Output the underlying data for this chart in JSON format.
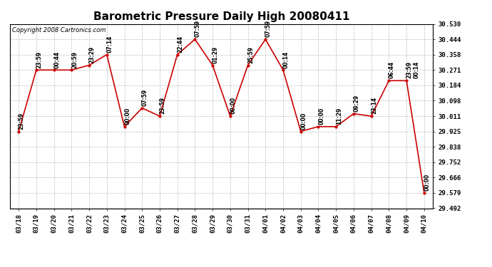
{
  "title": "Barometric Pressure Daily High 20080411",
  "copyright": "Copyright 2008 Cartronics.com",
  "x_labels": [
    "03/18",
    "03/19",
    "03/20",
    "03/21",
    "03/22",
    "03/23",
    "03/24",
    "03/25",
    "03/26",
    "03/27",
    "03/28",
    "03/29",
    "03/30",
    "03/31",
    "04/01",
    "04/02",
    "04/03",
    "04/04",
    "04/05",
    "04/06",
    "04/07",
    "04/08",
    "04/09",
    "04/10"
  ],
  "points": [
    [
      0,
      29.925,
      "23:59"
    ],
    [
      1,
      30.271,
      "23:59"
    ],
    [
      2,
      30.271,
      "00:44"
    ],
    [
      3,
      30.271,
      "20:59"
    ],
    [
      4,
      30.298,
      "23:29"
    ],
    [
      5,
      30.358,
      "07:14"
    ],
    [
      6,
      29.952,
      "00:00"
    ],
    [
      7,
      30.057,
      "07:59"
    ],
    [
      8,
      30.011,
      "23:59"
    ],
    [
      9,
      30.358,
      "22:44"
    ],
    [
      10,
      30.444,
      "07:59"
    ],
    [
      11,
      30.298,
      "01:29"
    ],
    [
      12,
      30.011,
      "00:00"
    ],
    [
      13,
      30.298,
      "25:59"
    ],
    [
      14,
      30.444,
      "07:59"
    ],
    [
      15,
      30.271,
      "00:14"
    ],
    [
      16,
      29.925,
      "00:00"
    ],
    [
      17,
      29.952,
      "00:00"
    ],
    [
      18,
      29.952,
      "11:29"
    ],
    [
      19,
      30.025,
      "09:29"
    ],
    [
      20,
      30.011,
      "23:14"
    ],
    [
      21,
      30.211,
      "06:44"
    ],
    [
      22,
      30.211,
      "23:59"
    ],
    [
      23,
      29.579,
      "00:00"
    ]
  ],
  "extra_labels": [
    [
      22,
      30.211,
      "00:14"
    ]
  ],
  "ylim_min": 29.492,
  "ylim_max": 30.53,
  "y_ticks": [
    29.492,
    29.579,
    29.666,
    29.752,
    29.838,
    29.925,
    30.011,
    30.098,
    30.184,
    30.271,
    30.358,
    30.444,
    30.53
  ],
  "line_color": "#CC0000",
  "marker_color": "#CC0000",
  "bg_color": "#FFFFFF",
  "grid_color": "#BBBBBB",
  "title_fontsize": 11,
  "annot_fontsize": 5.5,
  "tick_fontsize": 6.5,
  "copyright_fontsize": 6
}
